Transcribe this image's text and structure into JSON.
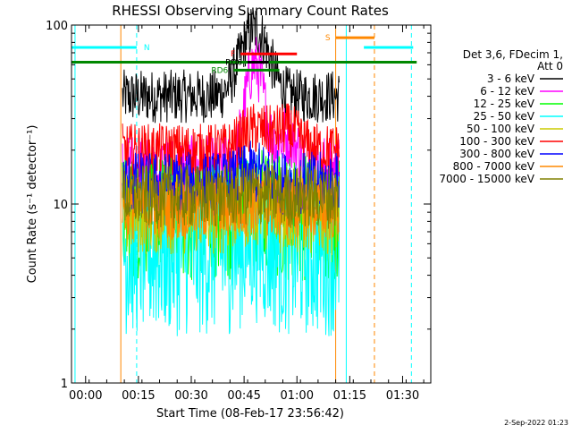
{
  "chart_data": {
    "type": "line",
    "title": "RHESSI Observing Summary Count Rates",
    "xlabel": "Start Time (08-Feb-17 23:56:42)",
    "ylabel": "Count Rate (s⁻¹ detector⁻¹)",
    "yscale": "log",
    "ylim": [
      1,
      100
    ],
    "xlim_minutes": [
      -4,
      34
    ],
    "x_ticks": [
      {
        "label": "00:00",
        "t": 0
      },
      {
        "label": "00:15",
        "t": 15
      },
      {
        "label": "00:30",
        "t": 30
      },
      {
        "label": "00:45",
        "t": 45
      },
      {
        "label": "01:00",
        "t": 60
      },
      {
        "label": "01:15",
        "t": 75
      },
      {
        "label": "01:30",
        "t": 90
      }
    ],
    "y_ticks": [
      {
        "label": "1",
        "v": 1
      },
      {
        "label": "10",
        "v": 10
      },
      {
        "label": "100",
        "v": 100
      }
    ],
    "legend": {
      "position": "right",
      "header": [
        "Det 3,6, FDecim 1,",
        "Att 0"
      ]
    },
    "series": [
      {
        "name": "3 - 6 keV",
        "color": "#000000",
        "base": 40,
        "peak": 95,
        "noise": 0.05
      },
      {
        "name": "6 - 12 keV",
        "color": "#ff00ff",
        "base": 16,
        "peak": 60,
        "noise": 0.06
      },
      {
        "name": "12 - 25 keV",
        "color": "#00ff00",
        "base": 8.5,
        "peak": 9.5,
        "noise": 0.12
      },
      {
        "name": "25 - 50 keV",
        "color": "#00ffff",
        "base": 5.5,
        "peak": 6.5,
        "noise": 0.16
      },
      {
        "name": "50 - 100 keV",
        "color": "#cccc00",
        "base": 9,
        "peak": 10,
        "noise": 0.08
      },
      {
        "name": "100 - 300 keV",
        "color": "#ff0000",
        "base": 20,
        "peak": 26,
        "noise": 0.05
      },
      {
        "name": "300 - 800 keV",
        "color": "#0000ff",
        "base": 13,
        "peak": 15,
        "noise": 0.06
      },
      {
        "name": "800 - 7000 keV",
        "color": "#ff8800",
        "base": 9.5,
        "peak": 10,
        "noise": 0.06
      },
      {
        "name": "7000 - 15000 keV",
        "color": "#808000",
        "base": 11,
        "peak": 11.5,
        "noise": 0.06
      }
    ],
    "bars": [
      {
        "label": "N",
        "color": "#00ffff",
        "segments": [
          [
            -4,
            14.5
          ],
          [
            79,
            93
          ]
        ],
        "value": 75
      },
      {
        "label": "",
        "color": "#008800",
        "segments": [
          [
            -4,
            94
          ]
        ],
        "value": 62
      },
      {
        "label": "F",
        "color": "#ff0000",
        "segments": [
          [
            44,
            60
          ]
        ],
        "value": 69
      },
      {
        "label": "RD6",
        "color": "#008800",
        "segments": [
          [
            42,
            55
          ]
        ],
        "value": 56
      },
      {
        "label": "RD6",
        "color": "#000000",
        "segments": [
          [
            46,
            52
          ]
        ],
        "value": 62
      },
      {
        "label": "S",
        "color": "#ff8800",
        "segments": [
          [
            71,
            82
          ]
        ],
        "value": 85
      }
    ],
    "markers": [
      {
        "t": -3,
        "color": "#00ffff",
        "style": "solid"
      },
      {
        "t": 14.5,
        "color": "#00ffff",
        "style": "dashed"
      },
      {
        "t": 10,
        "color": "#ff8800",
        "style": "solid"
      },
      {
        "t": 71,
        "color": "#ff8800",
        "style": "solid"
      },
      {
        "t": 82,
        "color": "#ff8800",
        "style": "dashed"
      },
      {
        "t": 74,
        "color": "#00ffff",
        "style": "solid"
      },
      {
        "t": 92.5,
        "color": "#00ffff",
        "style": "dashed"
      }
    ],
    "data_span": [
      10.5,
      72
    ]
  },
  "footer": {
    "date": "2-Sep-2022 01:23"
  }
}
